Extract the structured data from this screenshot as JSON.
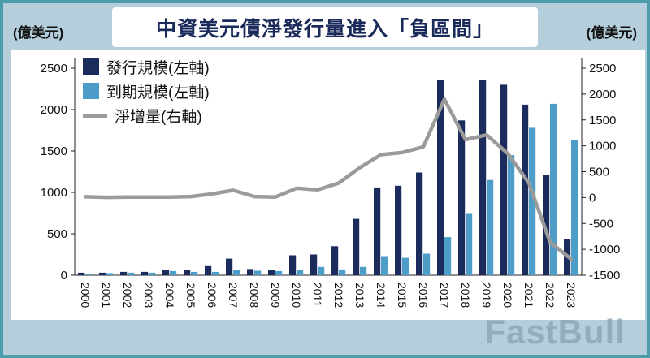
{
  "header": {
    "left_axis_unit": "(億美元)",
    "right_axis_unit": "(億美元)",
    "title": "中資美元債淨發行量進入「負區間」"
  },
  "legend": [
    {
      "label": "發行規模(左軸)",
      "color": "#1b2b5c",
      "type": "square"
    },
    {
      "label": "到期規模(左軸)",
      "color": "#4e9dc8",
      "type": "square"
    },
    {
      "label": "淨增量(右軸)",
      "color": "#9b9b9b",
      "type": "line"
    }
  ],
  "watermark": "FastBull",
  "colors": {
    "background": "#b5cedb",
    "frame_border": "#4d9cab",
    "panel": "#ffffff",
    "title_text": "#1a2a5a",
    "axis": "#222222",
    "issuance_bar": "#1b2b5c",
    "maturity_bar": "#4e9dc8",
    "net_line": "#9b9b9b"
  },
  "chart_data": {
    "type": "bar",
    "subtype": "grouped-bars-with-line",
    "title": "中資美元債淨發行量進入「負區間」",
    "categories": [
      "2000",
      "2001",
      "2002",
      "2003",
      "2004",
      "2005",
      "2006",
      "2007",
      "2008",
      "2009",
      "2010",
      "2011",
      "2012",
      "2013",
      "2014",
      "2015",
      "2016",
      "2017",
      "2018",
      "2019",
      "2020",
      "2021",
      "2022",
      "2023"
    ],
    "series": [
      {
        "name": "發行規模(左軸)",
        "type": "bar",
        "axis": "left",
        "color": "#1b2b5c",
        "values": [
          30,
          30,
          40,
          40,
          60,
          60,
          110,
          200,
          75,
          60,
          240,
          250,
          350,
          680,
          1060,
          1080,
          1240,
          2360,
          1870,
          2360,
          2300,
          2060,
          1210,
          440
        ]
      },
      {
        "name": "到期規模(左軸)",
        "type": "bar",
        "axis": "left",
        "color": "#4e9dc8",
        "values": [
          15,
          25,
          30,
          30,
          50,
          40,
          40,
          60,
          55,
          50,
          60,
          100,
          70,
          100,
          230,
          210,
          260,
          460,
          750,
          1150,
          1450,
          1780,
          2070,
          1630
        ]
      },
      {
        "name": "淨增量(右軸)",
        "type": "line",
        "axis": "right",
        "color": "#9b9b9b",
        "values": [
          15,
          5,
          10,
          10,
          10,
          20,
          70,
          140,
          20,
          10,
          180,
          150,
          280,
          580,
          830,
          870,
          980,
          1900,
          1120,
          1210,
          850,
          280,
          -860,
          -1190
        ]
      }
    ],
    "left_axis": {
      "label": "(億美元)",
      "min": 0,
      "max": 2500,
      "step": 500,
      "ticks": [
        0,
        500,
        1000,
        1500,
        2000,
        2500
      ]
    },
    "right_axis": {
      "label": "(億美元)",
      "min": -1500,
      "max": 2500,
      "step": 500,
      "ticks": [
        -1500,
        -1000,
        -500,
        0,
        500,
        1000,
        1500,
        2000,
        2500
      ]
    },
    "grid": false,
    "legend_position": "top-left-inside",
    "x_tick_rotation": 90
  }
}
